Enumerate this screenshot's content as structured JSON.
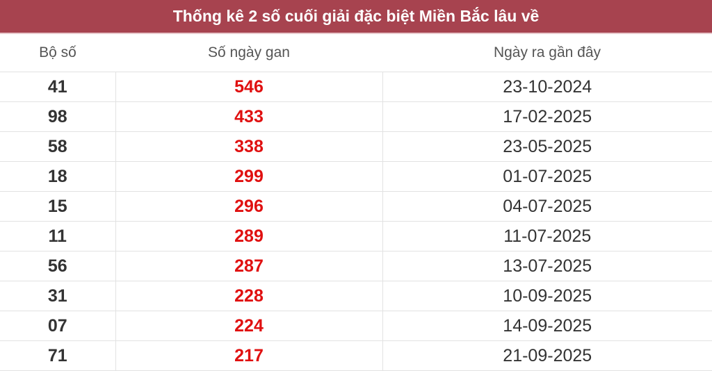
{
  "title": "Thống kê 2 số cuối giải đặc biệt Miền Bắc lâu về",
  "columns": [
    "Bộ số",
    "Số ngày gan",
    "Ngày ra gần đây"
  ],
  "colors": {
    "header_bg": "#a7434f",
    "gan_text": "#e01010"
  },
  "rows": [
    {
      "number": "41",
      "days": "546",
      "last_date": "23-10-2024"
    },
    {
      "number": "98",
      "days": "433",
      "last_date": "17-02-2025"
    },
    {
      "number": "58",
      "days": "338",
      "last_date": "23-05-2025"
    },
    {
      "number": "18",
      "days": "299",
      "last_date": "01-07-2025"
    },
    {
      "number": "15",
      "days": "296",
      "last_date": "04-07-2025"
    },
    {
      "number": "11",
      "days": "289",
      "last_date": "11-07-2025"
    },
    {
      "number": "56",
      "days": "287",
      "last_date": "13-07-2025"
    },
    {
      "number": "31",
      "days": "228",
      "last_date": "10-09-2025"
    },
    {
      "number": "07",
      "days": "224",
      "last_date": "14-09-2025"
    },
    {
      "number": "71",
      "days": "217",
      "last_date": "21-09-2025"
    }
  ]
}
